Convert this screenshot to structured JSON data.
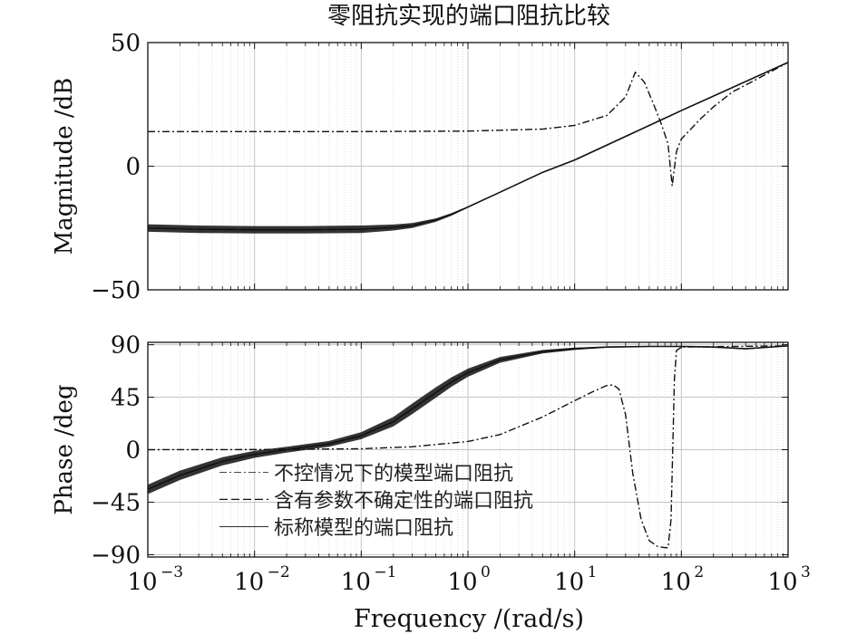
{
  "chart_data": {
    "title": "零阻抗实现的端口阻抗比较",
    "type": "line",
    "xscale": "log",
    "x_decades": [
      -3,
      -2,
      -1,
      0,
      1,
      2,
      3
    ],
    "xlabel": "Frequency /(rad/s)",
    "xticklabels": [
      "10",
      "10",
      "10",
      "10",
      "10",
      "10",
      "10"
    ],
    "xtick_exponents": [
      "−3",
      "−2",
      "−1",
      "0",
      "1",
      "2",
      "3"
    ],
    "grid": true,
    "legend_placement": "bottom-left (lower subplot)",
    "subplots": [
      {
        "name": "magnitude",
        "ylabel": "Magnitude /dB",
        "ylim": [
          -50,
          50
        ],
        "yticks": [
          -50,
          0,
          50
        ],
        "yticklabels": [
          "−50",
          "0",
          "50"
        ],
        "series": [
          {
            "name": "不控情况下的模型端口阻抗",
            "style": "dash-dot",
            "x": [
              0.001,
              0.1,
              1,
              5,
              10,
              20,
              30,
              37,
              45,
              55,
              65,
              75,
              82,
              90,
              100,
              150,
              200,
              300,
              500,
              1000
            ],
            "y": [
              14,
              14,
              14.2,
              15,
              16.5,
              20.5,
              28,
              38,
              34,
              25,
              17,
              9,
              -8,
              6,
              11,
              19,
              24,
              30,
              35,
              42
            ]
          },
          {
            "name": "含有参数不确定性的端口阻抗",
            "style": "dashed-band",
            "x": [
              0.001,
              0.003,
              0.01,
              0.03,
              0.1,
              0.2,
              0.3,
              0.5,
              0.7,
              1,
              2,
              5,
              10,
              100,
              1000
            ],
            "y": [
              -25,
              -25.5,
              -25.7,
              -25.7,
              -25.5,
              -24.8,
              -24,
              -21.8,
              -19.5,
              -16.5,
              -10.5,
              -2.5,
              2.5,
              22.5,
              42
            ],
            "band_halfwidth": [
              1.5,
              1.5,
              1.5,
              1.5,
              1.5,
              1.2,
              1.0,
              0.7,
              0.5,
              0.3,
              0.2,
              0.2,
              0.2,
              0.2,
              0.2
            ]
          },
          {
            "name": "标称模型的端口阻抗",
            "style": "solid",
            "x": [
              0.001,
              0.003,
              0.01,
              0.03,
              0.1,
              0.2,
              0.3,
              0.5,
              0.7,
              1,
              2,
              5,
              10,
              100,
              1000
            ],
            "y": [
              -25,
              -25.5,
              -25.7,
              -25.7,
              -25.5,
              -24.8,
              -24,
              -21.8,
              -19.5,
              -16.5,
              -10.5,
              -2.5,
              2.5,
              22.5,
              42
            ]
          }
        ]
      },
      {
        "name": "phase",
        "ylabel": "Phase /deg",
        "ylim": [
          -92,
          92
        ],
        "yticks": [
          -90,
          -45,
          0,
          45,
          90
        ],
        "yticklabels": [
          "−90",
          "−45",
          "0",
          "45",
          "90"
        ],
        "series": [
          {
            "name": "不控情况下的模型端口阻抗",
            "style": "dash-dot",
            "x": [
              0.001,
              0.01,
              0.1,
              0.3,
              1,
              2,
              5,
              10,
              15,
              20,
              23,
              26,
              30,
              35,
              42,
              50,
              60,
              70,
              75,
              80,
              83,
              86,
              90,
              100,
              1000
            ],
            "y": [
              0,
              0.1,
              0.8,
              2.5,
              7,
              13,
              28,
              42,
              50,
              55,
              55.5,
              52,
              30,
              -20,
              -60,
              -78,
              -83,
              -84,
              -84,
              -60,
              0,
              60,
              85,
              88,
              89
            ]
          },
          {
            "name": "含有参数不确定性的端口阻抗",
            "style": "dashed-band",
            "x": [
              0.001,
              0.002,
              0.005,
              0.01,
              0.02,
              0.05,
              0.1,
              0.2,
              0.3,
              0.5,
              0.7,
              1,
              2,
              5,
              10,
              20,
              50,
              100,
              200,
              400,
              1000
            ],
            "y": [
              -34,
              -22,
              -10,
              -4,
              0,
              5,
              12,
              24,
              35,
              49,
              58,
              66,
              77,
              84,
              86.5,
              88,
              88.5,
              88.5,
              88,
              86.5,
              89
            ],
            "band_halfwidth": [
              4,
              4,
              3.5,
              3,
              2.5,
              2.5,
              3,
              4,
              4.5,
              4.5,
              4,
              3.5,
              2.5,
              1.5,
              1,
              0.6,
              0.4,
              0.3,
              0.3,
              0.5,
              0.3
            ]
          },
          {
            "name": "标称模型的端口阻抗",
            "style": "solid",
            "x": [
              0.001,
              0.002,
              0.005,
              0.01,
              0.02,
              0.05,
              0.1,
              0.2,
              0.3,
              0.5,
              0.7,
              1,
              2,
              5,
              10,
              20,
              50,
              100,
              200,
              400,
              1000
            ],
            "y": [
              -34,
              -22,
              -10,
              -4,
              0,
              5,
              12,
              24,
              35,
              49,
              58,
              66,
              77,
              84,
              86.5,
              88,
              88.5,
              88.5,
              88,
              86.5,
              89
            ]
          }
        ]
      }
    ]
  }
}
